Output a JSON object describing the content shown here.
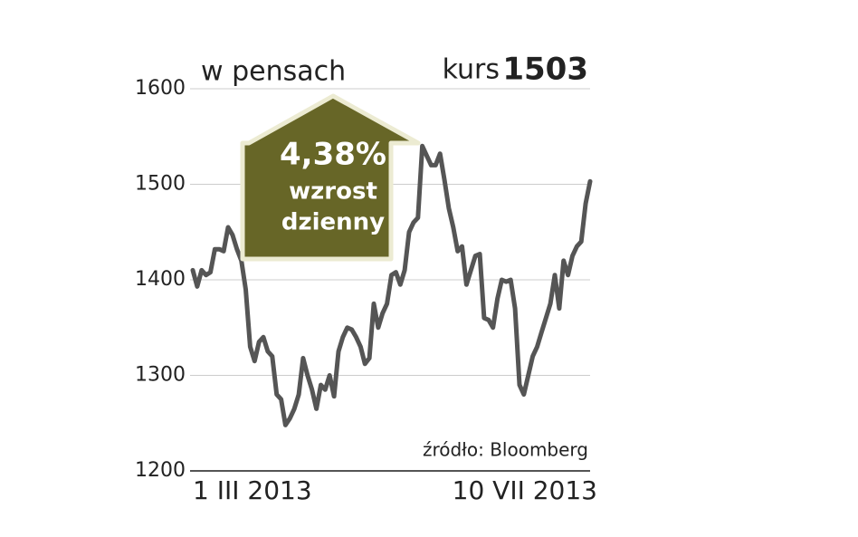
{
  "chart_data": {
    "type": "line",
    "y_label": "w pensach",
    "current_label": "kurs",
    "current_value": 1503,
    "annotations": [
      "4,38%",
      "wzrost",
      "dzienny"
    ],
    "source": "źródło: Bloomberg",
    "categories": [
      "1 III 2013",
      null,
      null,
      null,
      null,
      null,
      null,
      null,
      null,
      null,
      null,
      null,
      null,
      null,
      null,
      null,
      null,
      null,
      null,
      null,
      null,
      null,
      null,
      null,
      null,
      null,
      null,
      null,
      null,
      null,
      null,
      null,
      null,
      null,
      null,
      null,
      null,
      null,
      null,
      null,
      null,
      null,
      null,
      null,
      null,
      null,
      null,
      null,
      null,
      null,
      null,
      null,
      null,
      null,
      null,
      null,
      null,
      null,
      null,
      null,
      null,
      null,
      null,
      null,
      null,
      null,
      null,
      null,
      null,
      null,
      null,
      null,
      null,
      null,
      null,
      null,
      null,
      null,
      null,
      null,
      null,
      null,
      null,
      null,
      null,
      null,
      null,
      null,
      null,
      null,
      "10 VII 2013"
    ],
    "series": [
      {
        "color": "#555555",
        "values": [
          1410,
          1393,
          1410,
          1405,
          1408,
          1432,
          1432,
          1430,
          1455,
          1447,
          1432,
          1420,
          1390,
          1330,
          1315,
          1335,
          1340,
          1325,
          1320,
          1280,
          1275,
          1248,
          1255,
          1265,
          1280,
          1318,
          1300,
          1285,
          1265,
          1290,
          1285,
          1300,
          1278,
          1325,
          1340,
          1350,
          1348,
          1340,
          1330,
          1312,
          1318,
          1375,
          1350,
          1365,
          1375,
          1405,
          1408,
          1395,
          1410,
          1450,
          1460,
          1465,
          1540,
          1530,
          1520,
          1520,
          1532,
          1505,
          1475,
          1455,
          1430,
          1435,
          1395,
          1410,
          1425,
          1427,
          1360,
          1358,
          1350,
          1380,
          1400,
          1398,
          1400,
          1370,
          1290,
          1280,
          1300,
          1320,
          1330,
          1345,
          1360,
          1375,
          1405,
          1370,
          1420,
          1405,
          1425,
          1435,
          1440,
          1480,
          1503
        ]
      }
    ],
    "ylim": [
      1200,
      1600
    ],
    "yticks": [
      1200,
      1300,
      1400,
      1500,
      1600
    ],
    "grid": true,
    "arrow_color": "#676627"
  }
}
